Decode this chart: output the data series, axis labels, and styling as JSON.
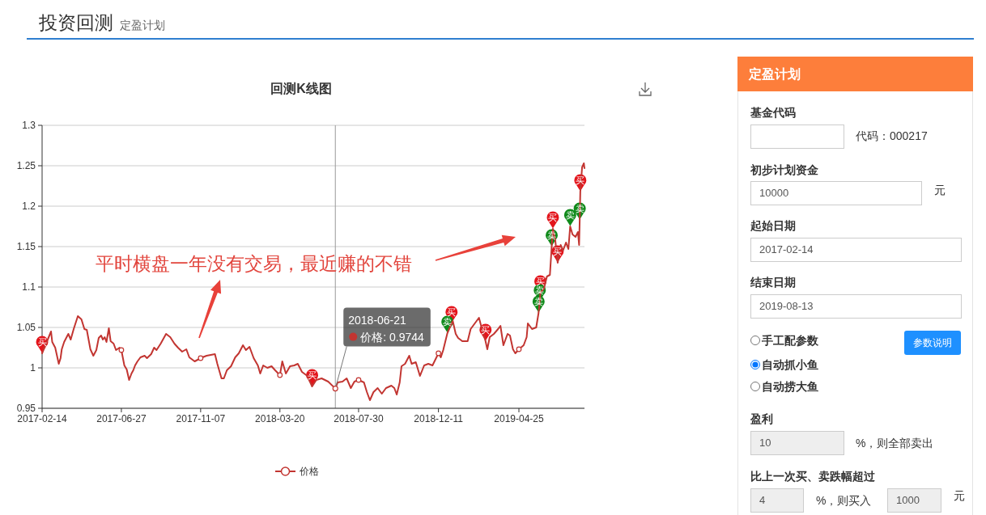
{
  "chart_data": [
    {
      "type": "other",
      "title": "投资回测",
      "subtitle": "定盈计划"
    },
    {
      "type": "line",
      "title": "回测K线图",
      "xlim": [
        "2017-02-14",
        "2019-08-13"
      ],
      "xticks": [
        "2017-02-14",
        "2017-06-27",
        "2017-11-07",
        "2018-03-20",
        "2018-07-30",
        "2018-12-11",
        "2019-04-25"
      ],
      "ylim": [
        0.95,
        1.3
      ],
      "yticks": [
        0.95,
        1,
        1.05,
        1.1,
        1.15,
        1.2,
        1.25,
        1.3
      ],
      "grid": "y",
      "legend": "bottom",
      "series": [
        {
          "name": "价格",
          "color": "#c23531",
          "x": [
            "2017-02-14",
            "2017-03-01",
            "2017-03-03",
            "2017-03-08",
            "2017-03-14",
            "2017-03-17",
            "2017-03-19",
            "2017-03-23",
            "2017-03-30",
            "2017-04-03",
            "2017-04-08",
            "2017-04-15",
            "2017-04-21",
            "2017-04-26",
            "2017-04-30",
            "2017-05-06",
            "2017-05-11",
            "2017-05-16",
            "2017-05-20",
            "2017-05-24",
            "2017-05-27",
            "2017-05-30",
            "2017-06-02",
            "2017-06-06",
            "2017-06-09",
            "2017-06-14",
            "2017-06-18",
            "2017-06-24",
            "2017-06-27",
            "2017-07-02",
            "2017-07-06",
            "2017-07-10",
            "2017-07-14",
            "2017-07-17",
            "2017-07-20",
            "2017-07-24",
            "2017-07-29",
            "2017-08-05",
            "2017-08-09",
            "2017-08-16",
            "2017-08-21",
            "2017-08-25",
            "2017-09-01",
            "2017-09-10",
            "2017-09-17",
            "2017-09-24",
            "2017-09-30",
            "2017-10-07",
            "2017-10-14",
            "2017-10-19",
            "2017-10-28",
            "2017-11-07",
            "2017-11-10",
            "2017-11-17",
            "2017-12-01",
            "2017-12-05",
            "2017-12-12",
            "2017-12-16",
            "2017-12-21",
            "2017-12-28",
            "2018-01-04",
            "2018-01-10",
            "2018-01-17",
            "2018-01-22",
            "2018-01-28",
            "2018-02-04",
            "2018-02-11",
            "2018-02-15",
            "2018-02-20",
            "2018-02-27",
            "2018-03-06",
            "2018-03-12",
            "2018-03-20",
            "2018-03-24",
            "2018-03-30",
            "2018-04-06",
            "2018-04-13",
            "2018-04-19",
            "2018-04-26",
            "2018-05-05",
            "2018-05-13",
            "2018-05-20",
            "2018-05-29",
            "2018-06-09",
            "2018-06-21",
            "2018-06-25",
            "2018-07-03",
            "2018-07-10",
            "2018-07-17",
            "2018-07-23",
            "2018-07-30",
            "2018-08-08",
            "2018-08-13",
            "2018-08-18",
            "2018-08-24",
            "2018-08-31",
            "2018-09-07",
            "2018-09-14",
            "2018-09-23",
            "2018-09-28",
            "2018-10-02",
            "2018-10-07",
            "2018-10-10",
            "2018-10-16",
            "2018-10-23",
            "2018-10-27",
            "2018-11-03",
            "2018-11-10",
            "2018-11-17",
            "2018-11-24",
            "2018-12-01",
            "2018-12-11",
            "2018-12-15",
            "2018-12-19",
            "2018-12-26",
            "2019-01-02",
            "2019-01-04",
            "2019-01-09",
            "2019-01-13",
            "2019-01-20",
            "2019-01-29",
            "2019-02-03",
            "2019-02-10",
            "2019-02-17",
            "2019-02-22",
            "2019-02-28",
            "2019-03-03",
            "2019-03-07",
            "2019-03-14",
            "2019-03-21",
            "2019-03-25",
            "2019-03-30",
            "2019-04-06",
            "2019-04-10",
            "2019-04-15",
            "2019-04-19",
            "2019-04-25",
            "2019-05-03",
            "2019-05-08",
            "2019-05-10",
            "2019-05-17",
            "2019-05-24",
            "2019-05-28",
            "2019-05-30",
            "2019-05-31",
            "2019-06-06",
            "2019-06-11",
            "2019-06-16",
            "2019-06-19",
            "2019-06-21",
            "2019-06-25",
            "2019-06-29",
            "2019-07-04",
            "2019-07-08",
            "2019-07-13",
            "2019-07-17",
            "2019-07-20",
            "2019-07-24",
            "2019-07-29",
            "2019-08-02",
            "2019-08-04",
            "2019-08-05",
            "2019-08-06",
            "2019-08-09",
            "2019-08-12",
            "2019-08-13"
          ],
          "values": [
            1.018,
            1.045,
            1.032,
            1.025,
            1.005,
            1.012,
            1.023,
            1.032,
            1.042,
            1.035,
            1.048,
            1.064,
            1.06,
            1.048,
            1.047,
            1.023,
            1.015,
            1.022,
            1.037,
            1.04,
            1.035,
            1.038,
            1.032,
            1.049,
            1.033,
            1.03,
            1.022,
            1.025,
            1.022,
            1.003,
            0.998,
            0.985,
            0.993,
            0.997,
            1.003,
            1.008,
            1.013,
            1.015,
            1.012,
            1.017,
            1.025,
            1.022,
            1.03,
            1.042,
            1.038,
            1.03,
            1.025,
            1.02,
            1.023,
            1.013,
            1.008,
            1.012,
            1.013,
            1.015,
            1.017,
            1.005,
            0.987,
            0.987,
            0.997,
            1.002,
            1.013,
            1.018,
            1.028,
            1.022,
            1.026,
            1.012,
            1.003,
            0.993,
            1.003,
            1.0,
            1.002,
            0.997,
            0.991,
            1.008,
            0.993,
            1.002,
            1.003,
            1.005,
            0.995,
            0.99,
            0.977,
            0.985,
            0.987,
            0.983,
            0.9744,
            0.982,
            0.983,
            0.987,
            0.975,
            0.983,
            0.985,
            0.982,
            0.97,
            0.96,
            0.97,
            0.975,
            0.968,
            0.975,
            0.978,
            0.975,
            0.967,
            0.982,
            1.002,
            1.005,
            1.015,
            1.005,
            1.007,
            0.99,
            1.003,
            1.005,
            1.003,
            1.018,
            1.013,
            1.022,
            1.043,
            1.055,
            1.058,
            1.042,
            1.037,
            1.033,
            1.033,
            1.048,
            1.055,
            1.062,
            1.048,
            1.033,
            1.023,
            1.038,
            1.042,
            1.048,
            1.052,
            1.028,
            1.042,
            1.04,
            1.023,
            1.018,
            1.023,
            1.028,
            1.038,
            1.055,
            1.048,
            1.05,
            1.068,
            1.082,
            1.093,
            1.098,
            1.113,
            1.115,
            1.15,
            1.172,
            1.158,
            1.13,
            1.152,
            1.145,
            1.155,
            1.147,
            1.175,
            1.165,
            1.162,
            1.168,
            1.152,
            1.183,
            1.218,
            1.248,
            1.253,
            1.247
          ]
        },
        {
          "type": "scatter",
          "marker": "circle",
          "color": "#c23531",
          "x": [
            "2017-06-27",
            "2017-11-07",
            "2018-03-20",
            "2018-07-30",
            "2018-12-11",
            "2019-04-25"
          ],
          "values": [
            1.022,
            1.012,
            0.991,
            0.985,
            1.018,
            1.023
          ]
        },
        {
          "type": "scatter",
          "color": "#e3141b",
          "x": [
            "2017-02-14",
            "2018-05-13",
            "2019-01-02",
            "2019-02-28",
            "2019-05-31",
            "2019-06-21",
            "2019-06-29",
            "2019-08-06"
          ],
          "values": [
            1.029,
            0.988,
            1.066,
            1.044,
            1.104,
            1.183,
            1.141,
            1.229
          ],
          "value_labels": [
            "买",
            "买",
            "买",
            "买",
            "买",
            "买",
            "买",
            "买"
          ]
        },
        {
          "type": "scatter",
          "color": "#0f8a1a",
          "x": [
            "2018-12-26",
            "2019-05-28",
            "2019-05-30",
            "2019-06-19",
            "2019-07-20",
            "2019-08-05"
          ],
          "values": [
            1.054,
            1.079,
            1.093,
            1.161,
            1.186,
            1.194
          ],
          "value_labels": [
            "卖",
            "卖",
            "卖",
            "卖",
            "卖",
            "卖"
          ]
        }
      ],
      "ref_lines": [
        {
          "axis": "x",
          "value": "2018-06-21",
          "color": "#9a9a9a"
        }
      ],
      "annotations": [
        "平时横盘一年没有交易，最近赚的不错",
        {
          "text": "2018-06-21\n价格: 0.9744",
          "x": "2018-06-21",
          "y": 0.9744
        }
      ]
    },
    {
      "type": "other",
      "title": "定盈计划",
      "annotations": [
        "基金代码",
        "代码：000217",
        "初步计划资金",
        "10000",
        "元",
        "起始日期",
        "2017-02-14",
        "结束日期",
        "2019-08-13",
        "手工配参数",
        "参数说明",
        "自动抓小鱼",
        "自动捞大鱼",
        "盈利",
        "10",
        "%，则全部卖出",
        "比上一次买、卖跌幅超过",
        "4",
        "%，则买入",
        "1000",
        "元"
      ]
    }
  ]
}
